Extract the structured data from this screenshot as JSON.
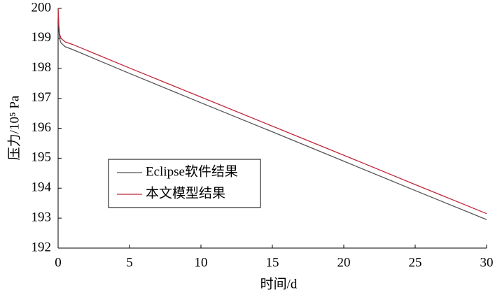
{
  "chart_data": {
    "type": "line",
    "xlabel": "时间/d",
    "ylabel": "压力/10⁵ Pa",
    "x": [
      0,
      0.05,
      0.1,
      0.2,
      0.5,
      1,
      5,
      10,
      15,
      20,
      25,
      30
    ],
    "series": [
      {
        "name": "Eclipse软件结果",
        "color": "#555555",
        "values": [
          200,
          199.3,
          199.0,
          198.85,
          198.72,
          198.63,
          197.83,
          196.85,
          195.88,
          194.9,
          193.92,
          192.95
        ]
      },
      {
        "name": "本文模型结果",
        "color": "#c0283a",
        "values": [
          200,
          199.45,
          199.15,
          199.0,
          198.88,
          198.8,
          198.01,
          197.04,
          196.07,
          195.1,
          194.12,
          193.15
        ]
      }
    ],
    "xlim": [
      0,
      30
    ],
    "xticks": [
      0,
      5,
      10,
      15,
      20,
      25,
      30
    ],
    "ylim": [
      192,
      200
    ],
    "yticks": [
      192,
      193,
      194,
      195,
      196,
      197,
      198,
      199,
      200
    ],
    "legend": "lower-left"
  }
}
